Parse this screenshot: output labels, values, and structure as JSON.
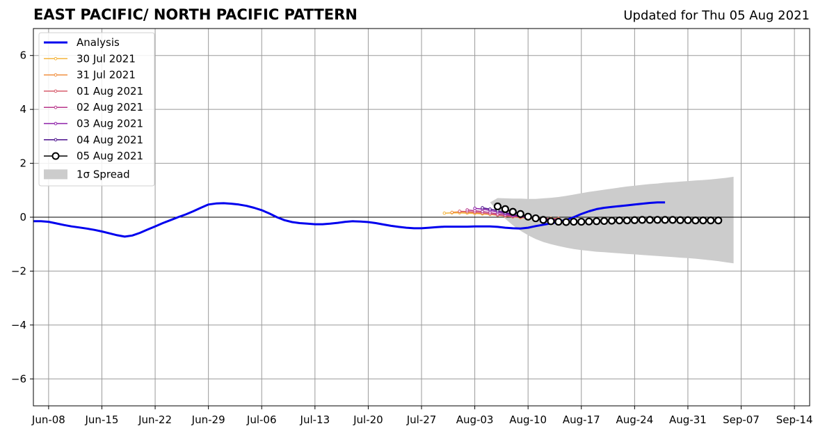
{
  "chart_data": {
    "type": "line",
    "title": "EAST PACIFIC/ NORTH PACIFIC PATTERN",
    "subtitle": "Updated for Thu 05 Aug 2021",
    "x_ticks": [
      "Jun-08",
      "Jun-15",
      "Jun-22",
      "Jun-29",
      "Jul-06",
      "Jul-13",
      "Jul-20",
      "Jul-27",
      "Aug-03",
      "Aug-10",
      "Aug-17",
      "Aug-24",
      "Aug-31",
      "Sep-07",
      "Sep-14"
    ],
    "y_ticks": [
      -6,
      -4,
      -2,
      0,
      2,
      4,
      6
    ],
    "xlim": [
      "2021-06-06",
      "2021-09-16"
    ],
    "ylim": [
      -7,
      7
    ],
    "grid": true,
    "legend_position": "top-left",
    "analysis": {
      "name": "Analysis",
      "color": "#0000ee",
      "start_date": "2021-06-06",
      "values": [
        -0.15,
        -0.15,
        -0.17,
        -0.23,
        -0.29,
        -0.34,
        -0.38,
        -0.42,
        -0.47,
        -0.53,
        -0.6,
        -0.67,
        -0.72,
        -0.68,
        -0.58,
        -0.46,
        -0.34,
        -0.22,
        -0.11,
        0.0,
        0.1,
        0.22,
        0.35,
        0.47,
        0.51,
        0.52,
        0.5,
        0.47,
        0.42,
        0.35,
        0.26,
        0.14,
        0.0,
        -0.11,
        -0.18,
        -0.22,
        -0.24,
        -0.26,
        -0.26,
        -0.24,
        -0.21,
        -0.17,
        -0.15,
        -0.16,
        -0.18,
        -0.22,
        -0.27,
        -0.32,
        -0.36,
        -0.39,
        -0.41,
        -0.41,
        -0.39,
        -0.37,
        -0.35,
        -0.35,
        -0.35,
        -0.35,
        -0.34,
        -0.34,
        -0.34,
        -0.36,
        -0.39,
        -0.41,
        -0.42,
        -0.39,
        -0.33,
        -0.28,
        -0.23,
        -0.17,
        -0.1,
        0.0,
        0.12,
        0.22,
        0.3,
        0.35,
        0.38,
        0.41,
        0.44,
        0.47,
        0.5,
        0.53,
        0.55,
        0.55
      ]
    },
    "forecasts": [
      {
        "name": "30 Jul 2021",
        "color": "#f4b43c",
        "start_date": "2021-07-30",
        "values": [
          0.15,
          0.16,
          0.16,
          0.15,
          0.14,
          0.12,
          0.1,
          0.07,
          0.04,
          0.01,
          -0.02,
          -0.04,
          -0.05,
          -0.05,
          -0.05,
          -0.05
        ]
      },
      {
        "name": "31 Jul 2021",
        "color": "#f08e3e",
        "start_date": "2021-07-31",
        "values": [
          0.18,
          0.2,
          0.19,
          0.17,
          0.15,
          0.12,
          0.09,
          0.06,
          0.04,
          0.02,
          0.0,
          -0.02,
          -0.04,
          -0.05,
          -0.05
        ]
      },
      {
        "name": "01 Aug 2021",
        "color": "#d75c6c",
        "start_date": "2021-08-01",
        "values": [
          0.22,
          0.21,
          0.19,
          0.16,
          0.12,
          0.08,
          0.05,
          0.02,
          0.0,
          -0.02,
          -0.04,
          -0.05,
          -0.06,
          -0.06
        ]
      },
      {
        "name": "02 Aug 2021",
        "color": "#b8358a",
        "start_date": "2021-08-02",
        "values": [
          0.27,
          0.24,
          0.21,
          0.17,
          0.12,
          0.08,
          0.04,
          0.01,
          -0.02,
          -0.04,
          -0.06,
          -0.07,
          -0.08
        ]
      },
      {
        "name": "03 Aug 2021",
        "color": "#8c1ea8",
        "start_date": "2021-08-03",
        "values": [
          0.33,
          0.3,
          0.25,
          0.19,
          0.13,
          0.07,
          0.03,
          -0.01,
          -0.04,
          -0.06,
          -0.08,
          -0.09
        ]
      },
      {
        "name": "04 Aug 2021",
        "color": "#4b0f8c",
        "start_date": "2021-08-04",
        "values": [
          0.35,
          0.3,
          0.24,
          0.17,
          0.1,
          0.04,
          -0.01,
          -0.05,
          -0.08,
          -0.1,
          -0.12
        ]
      },
      {
        "name": "05 Aug 2021",
        "color": "#000000",
        "marker_face": "#ffffff",
        "start_date": "2021-08-06",
        "values": [
          0.4,
          0.3,
          0.2,
          0.12,
          0.02,
          -0.04,
          -0.1,
          -0.15,
          -0.17,
          -0.18,
          -0.17,
          -0.17,
          -0.16,
          -0.15,
          -0.14,
          -0.13,
          -0.12,
          -0.12,
          -0.11,
          -0.1,
          -0.1,
          -0.1,
          -0.1,
          -0.1,
          -0.11,
          -0.11,
          -0.12,
          -0.12,
          -0.12,
          -0.12
        ]
      }
    ],
    "spread": {
      "name": "1σ Spread",
      "color": "#cccccc",
      "start_date": "2021-08-05",
      "upper": [
        0.55,
        0.71,
        0.7,
        0.69,
        0.69,
        0.68,
        0.68,
        0.7,
        0.72,
        0.75,
        0.79,
        0.84,
        0.89,
        0.94,
        0.98,
        1.02,
        1.06,
        1.1,
        1.14,
        1.17,
        1.2,
        1.23,
        1.25,
        1.28,
        1.3,
        1.32,
        1.34,
        1.36,
        1.38,
        1.4,
        1.43,
        1.46,
        1.5
      ],
      "lower": [
        0.55,
        0.22,
        -0.06,
        -0.3,
        -0.5,
        -0.67,
        -0.81,
        -0.92,
        -1.0,
        -1.07,
        -1.13,
        -1.18,
        -1.22,
        -1.25,
        -1.28,
        -1.3,
        -1.32,
        -1.34,
        -1.36,
        -1.38,
        -1.4,
        -1.42,
        -1.44,
        -1.46,
        -1.48,
        -1.5,
        -1.52,
        -1.54,
        -1.57,
        -1.6,
        -1.63,
        -1.67,
        -1.71
      ]
    }
  }
}
